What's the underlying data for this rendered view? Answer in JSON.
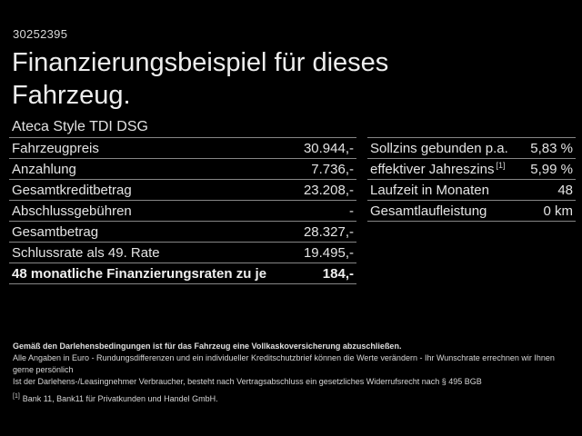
{
  "page": {
    "vehicle_id": "30252395",
    "title": "Finanzierungsbeispiel für dieses Fahrzeug.",
    "subtitle": "Ateca Style TDI DSG"
  },
  "colors": {
    "background": "#000000",
    "text": "#e8e8e8",
    "divider": "#868686",
    "footnote_text": "#d6d6d6"
  },
  "finance_table": {
    "rows": [
      {
        "label": "Fahrzeugpreis",
        "value": "30.944,-"
      },
      {
        "label": "Anzahlung",
        "value": "7.736,-"
      },
      {
        "label": "Gesamtkreditbetrag",
        "value": "23.208,-"
      },
      {
        "label": "Abschlussgebühren",
        "value": "-"
      },
      {
        "label": "Gesamtbetrag",
        "value": "28.327,-"
      },
      {
        "label": "Schlussrate als 49. Rate",
        "value": "19.495,-"
      },
      {
        "label": "48 monatliche Finanzierungsraten zu je",
        "value": "184,-"
      }
    ]
  },
  "rates_table": {
    "rows": [
      {
        "label": "Sollzins gebunden p.a.",
        "value": "5,83 %"
      },
      {
        "label": "effektiver Jahreszins",
        "sup": "[1]",
        "value": "5,99 %"
      },
      {
        "label": "Laufzeit in Monaten",
        "value": "48"
      },
      {
        "label": "Gesamtlaufleistung",
        "value": "0 km"
      }
    ]
  },
  "footnotes": {
    "insurance_note": "Gemäß den Darlehensbedingungen ist für das Fahrzeug eine Vollkaskoversicherung abzuschließen.",
    "disclaimer_line1": "Alle Angaben in Euro - Rundungsdifferenzen und ein individueller Kreditschutzbrief können die Werte verändern - Ihr Wunschrate errechnen wir Ihnen gerne persönlich",
    "disclaimer_line2": "Ist der Darlehens-/Leasingnehmer Verbraucher, besteht nach Vertragsabschluss ein gesetzliches Widerrufsrecht nach § 495 BGB",
    "bank_reference_marker": "[1]",
    "bank_reference": "Bank 11, Bank11 für Privatkunden und Handel GmbH."
  }
}
